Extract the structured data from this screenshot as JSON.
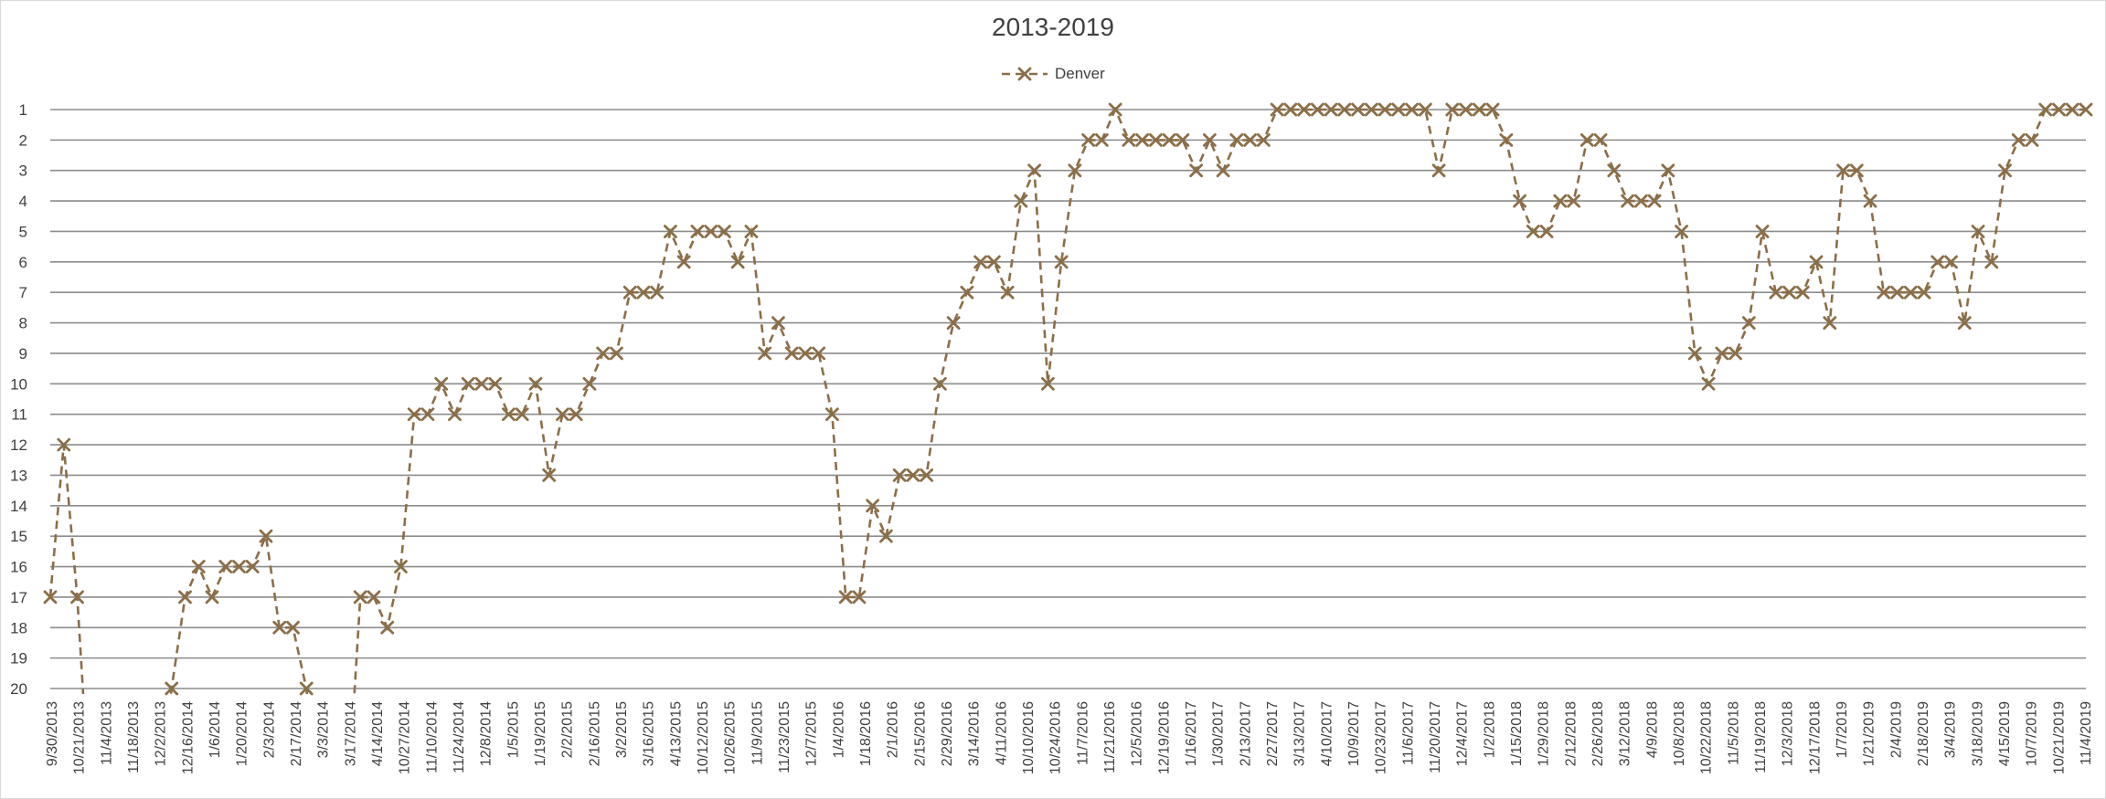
{
  "chart_data": {
    "type": "line",
    "title": "2013-2019",
    "xlabel": "",
    "ylabel": "",
    "y_reversed": true,
    "ylim": [
      1,
      20
    ],
    "y_ticks": [
      1,
      2,
      3,
      4,
      5,
      6,
      7,
      8,
      9,
      10,
      11,
      12,
      13,
      14,
      15,
      16,
      17,
      18,
      19,
      20
    ],
    "grid": true,
    "legend_position": "top-center",
    "x_tick_labels": [
      "9/30/2013",
      "10/21/2013",
      "11/4/2013",
      "11/18/2013",
      "12/2/2013",
      "12/16/2014",
      "1/6/2014",
      "1/20/2014",
      "2/3/2014",
      "2/17/2014",
      "3/3/2014",
      "3/17/2014",
      "4/14/2014",
      "10/27/2014",
      "11/10/2014",
      "11/24/2014",
      "12/8/2014",
      "1/5/2015",
      "1/19/2015",
      "2/2/2015",
      "2/16/2015",
      "3/2/2015",
      "3/16/2015",
      "4/13/2015",
      "10/12/2015",
      "10/26/2015",
      "11/9/2015",
      "11/23/2015",
      "12/7/2015",
      "1/4/2016",
      "1/18/2016",
      "2/1/2016",
      "2/15/2016",
      "2/29/2016",
      "3/14/2016",
      "4/11/2016",
      "10/10/2016",
      "10/24/2016",
      "11/7/2016",
      "11/21/2016",
      "12/5/2016",
      "12/19/2016",
      "1/16/2017",
      "1/30/2017",
      "2/13/2017",
      "2/27/2017",
      "3/13/2017",
      "4/10/2017",
      "10/9/2017",
      "10/23/2017",
      "11/6/2017",
      "11/20/2017",
      "12/4/2017",
      "1/2/2018",
      "1/15/2018",
      "1/29/2018",
      "2/12/2018",
      "2/26/2018",
      "3/12/2018",
      "4/9/2018",
      "10/8/2018",
      "10/22/2018",
      "11/5/2018",
      "11/19/2018",
      "12/3/2018",
      "12/17/2018",
      "1/7/2019",
      "1/21/2019",
      "2/4/2019",
      "2/18/2019",
      "3/4/2019",
      "3/18/2019",
      "4/15/2019",
      "10/7/2019",
      "10/21/2019",
      "11/4/2019"
    ],
    "series": [
      {
        "name": "Denver",
        "color": "#8b6e48",
        "values": [
          17,
          12,
          17,
          null,
          null,
          null,
          null,
          null,
          null,
          20,
          17,
          16,
          17,
          16,
          16,
          16,
          15,
          18,
          18,
          20,
          null,
          null,
          null,
          17,
          17,
          18,
          16,
          11,
          11,
          10,
          11,
          10,
          10,
          10,
          11,
          11,
          10,
          13,
          11,
          11,
          10,
          9,
          9,
          7,
          7,
          7,
          5,
          6,
          5,
          5,
          5,
          6,
          5,
          9,
          8,
          9,
          9,
          9,
          11,
          17,
          17,
          14,
          15,
          13,
          13,
          13,
          10,
          8,
          7,
          6,
          6,
          7,
          4,
          3,
          10,
          6,
          3,
          2,
          2,
          1,
          2,
          2,
          2,
          2,
          2,
          3,
          2,
          3,
          2,
          2,
          2,
          1,
          1,
          1,
          1,
          1,
          1,
          1,
          1,
          1,
          1,
          1,
          1,
          3,
          1,
          1,
          1,
          1,
          2,
          4,
          5,
          5,
          4,
          4,
          2,
          2,
          3,
          4,
          4,
          4,
          3,
          5,
          9,
          10,
          9,
          9,
          8,
          5,
          7,
          7,
          7,
          6,
          8,
          3,
          3,
          4,
          7,
          7,
          7,
          7,
          6,
          6,
          8,
          5,
          6,
          3,
          2,
          2,
          1,
          1,
          1,
          1
        ]
      }
    ]
  }
}
